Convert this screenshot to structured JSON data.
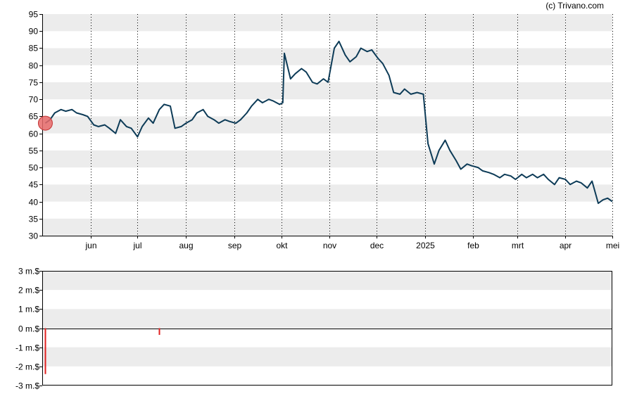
{
  "credit": "(c) Trivano.com",
  "colors": {
    "price_line": "#0d3b57",
    "marker_fill": "#e86a6a",
    "marker_stroke": "#c33333",
    "flow_bar": "#e02020",
    "band": "#ececec",
    "grid_line": "#000000"
  },
  "chart_data": [
    {
      "type": "line",
      "title": "",
      "xlabel": "",
      "ylabel": "",
      "ylim": [
        30,
        95
      ],
      "yticks": [
        30,
        35,
        40,
        45,
        50,
        55,
        60,
        65,
        70,
        75,
        80,
        85,
        90,
        95
      ],
      "x_month_labels": [
        "jun",
        "jul",
        "aug",
        "sep",
        "okt",
        "nov",
        "dec",
        "2025",
        "feb",
        "mrt",
        "apr",
        "mei"
      ],
      "grid": "vertical dotted at month starts, alternating horizontal bands",
      "marker": {
        "x": "2024-05-03",
        "y": 63
      },
      "series": [
        {
          "x": [
            "2024-05-03",
            "2024-05-06",
            "2024-05-09",
            "2024-05-13",
            "2024-05-16",
            "2024-05-20",
            "2024-05-23",
            "2024-05-27",
            "2024-05-30",
            "2024-06-03",
            "2024-06-06",
            "2024-06-10",
            "2024-06-13",
            "2024-06-17",
            "2024-06-20",
            "2024-06-24",
            "2024-06-27",
            "2024-07-01",
            "2024-07-04",
            "2024-07-08",
            "2024-07-11",
            "2024-07-15",
            "2024-07-18",
            "2024-07-22",
            "2024-07-25",
            "2024-07-29",
            "2024-08-01",
            "2024-08-05",
            "2024-08-08",
            "2024-08-12",
            "2024-08-15",
            "2024-08-19",
            "2024-08-22",
            "2024-08-26",
            "2024-08-29",
            "2024-09-02",
            "2024-09-05",
            "2024-09-09",
            "2024-09-12",
            "2024-09-16",
            "2024-09-19",
            "2024-09-23",
            "2024-09-26",
            "2024-09-30",
            "2024-10-02",
            "2024-10-03",
            "2024-10-07",
            "2024-10-10",
            "2024-10-14",
            "2024-10-17",
            "2024-10-21",
            "2024-10-24",
            "2024-10-28",
            "2024-10-31",
            "2024-11-04",
            "2024-11-07",
            "2024-11-11",
            "2024-11-14",
            "2024-11-18",
            "2024-11-21",
            "2024-11-25",
            "2024-11-28",
            "2024-12-02",
            "2024-12-05",
            "2024-12-09",
            "2024-12-12",
            "2024-12-16",
            "2024-12-19",
            "2024-12-23",
            "2024-12-27",
            "2024-12-31",
            "2025-01-03",
            "2025-01-07",
            "2025-01-10",
            "2025-01-14",
            "2025-01-17",
            "2025-01-21",
            "2025-01-24",
            "2025-01-28",
            "2025-01-31",
            "2025-02-04",
            "2025-02-07",
            "2025-02-11",
            "2025-02-14",
            "2025-02-18",
            "2025-02-21",
            "2025-02-25",
            "2025-02-28",
            "2025-03-04",
            "2025-03-07",
            "2025-03-11",
            "2025-03-14",
            "2025-03-18",
            "2025-03-21",
            "2025-03-25",
            "2025-03-28",
            "2025-04-01",
            "2025-04-04",
            "2025-04-08",
            "2025-04-11",
            "2025-04-15",
            "2025-04-18",
            "2025-04-22",
            "2025-04-25",
            "2025-04-28",
            "2025-05-01"
          ],
          "values": [
            63,
            64,
            66,
            67,
            66.5,
            67,
            66,
            65.5,
            65,
            62.5,
            62,
            62.5,
            61.5,
            60,
            64,
            62,
            61.5,
            59,
            62,
            64.5,
            63,
            67,
            68.5,
            68,
            61.5,
            62,
            63,
            64,
            66,
            67,
            65,
            64,
            63,
            64,
            63.5,
            63,
            64,
            66,
            68,
            70,
            69,
            70,
            69.5,
            68.5,
            69,
            83.5,
            76,
            77.5,
            79,
            78,
            75,
            74.5,
            76,
            75,
            85,
            87,
            83,
            81,
            82.5,
            85,
            84,
            84.5,
            82,
            80.5,
            77,
            72,
            71.5,
            73,
            71.5,
            72,
            71.5,
            57,
            51,
            55,
            58,
            55,
            52,
            49.5,
            51,
            50.5,
            50,
            49,
            48.5,
            48,
            47,
            48,
            47.5,
            46.5,
            48,
            47,
            48,
            47,
            48,
            46.5,
            45,
            47,
            46.5,
            45,
            46,
            45.5,
            44,
            46,
            39.5,
            40.5,
            41,
            40
          ]
        }
      ]
    },
    {
      "type": "bar",
      "title": "",
      "ylim": [
        -3,
        3
      ],
      "ytick_labels": [
        "3 m.$",
        "2 m.$",
        "1 m.$",
        "0 m.$",
        "-1 m.$",
        "-2 m.$",
        "-3 m.$"
      ],
      "yticks": [
        3,
        2,
        1,
        0,
        -1,
        -2,
        -3
      ],
      "bars": [
        {
          "x": "2024-05-03",
          "value": -2.4
        },
        {
          "x": "2024-07-15",
          "value": -0.35
        }
      ]
    }
  ]
}
